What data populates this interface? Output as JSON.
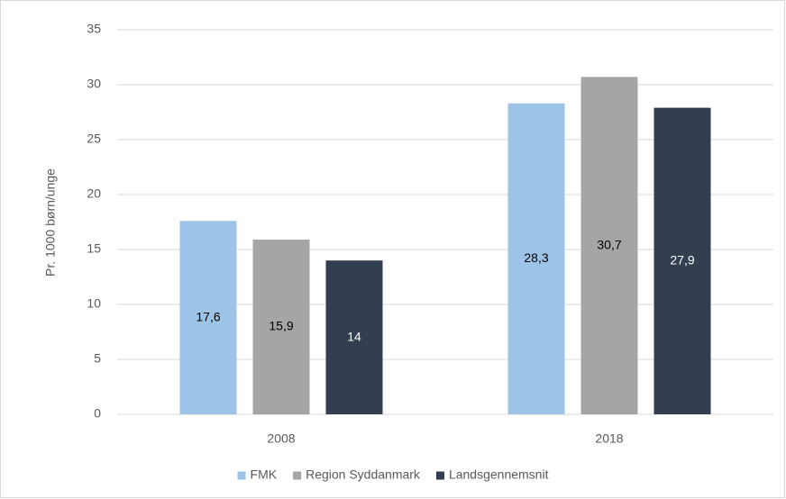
{
  "chart_data": {
    "type": "bar",
    "y_label": "Pr. 1000 børn/unge",
    "categories": [
      "2008",
      "2018"
    ],
    "series": [
      {
        "name": "FMK",
        "color": "#9dc3e6",
        "values": [
          17.6,
          28.3
        ],
        "value_labels": [
          "17,6",
          "28,3"
        ]
      },
      {
        "name": "Region Syddanmark",
        "color": "#a5a5a5",
        "values": [
          15.9,
          30.7
        ],
        "value_labels": [
          "15,9",
          "30,7"
        ]
      },
      {
        "name": "Landsgennemsnit",
        "color": "#333f50",
        "values": [
          14,
          27.9
        ],
        "value_labels": [
          "14",
          "27,9"
        ]
      }
    ],
    "ylim": [
      0,
      35
    ],
    "yticks": [
      0,
      5,
      10,
      15,
      20,
      25,
      30,
      35
    ],
    "grid": true,
    "legend": "bottom"
  }
}
